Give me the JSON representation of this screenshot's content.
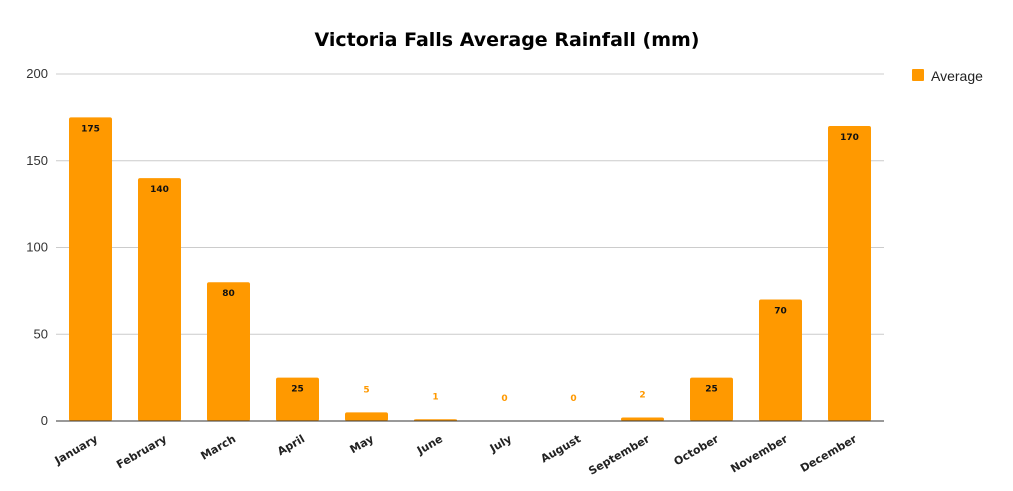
{
  "chart_data": {
    "type": "bar",
    "title": "Victoria Falls Average Rainfall (mm)",
    "xlabel": "",
    "ylabel": "",
    "categories": [
      "January",
      "February",
      "March",
      "April",
      "May",
      "June",
      "July",
      "August",
      "September",
      "October",
      "November",
      "December"
    ],
    "series": [
      {
        "name": "Average",
        "color": "#ff9900",
        "values": [
          175,
          140,
          80,
          25,
          5,
          1,
          0,
          0,
          2,
          25,
          70,
          170
        ]
      }
    ],
    "ylim": [
      0,
      200
    ],
    "yticks": [
      0,
      50,
      100,
      150,
      200
    ],
    "grid": true,
    "legend": "right"
  }
}
